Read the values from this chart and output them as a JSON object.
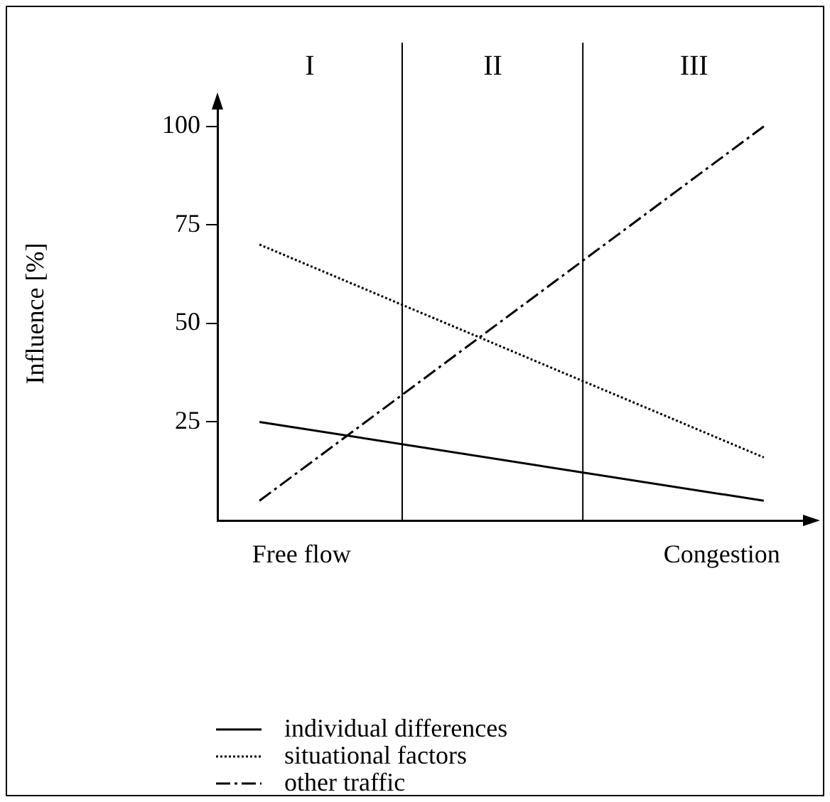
{
  "chart_data": {
    "type": "line",
    "ylabel": "Influence [%]",
    "categories": [
      null,
      null,
      "Free flow",
      null,
      null,
      null,
      null,
      null,
      null,
      null,
      null,
      null,
      "Congestion",
      null,
      null
    ],
    "ylim": [
      0,
      105
    ],
    "yticks": [
      25,
      50,
      75,
      100
    ],
    "legend": "bottom",
    "marker": "none",
    "series": [
      {
        "name": "individual differences",
        "color": "#000000",
        "line_style": "solid",
        "values": [
          null,
          25,
          null,
          null,
          null,
          null,
          null,
          null,
          null,
          null,
          null,
          null,
          null,
          5,
          null
        ]
      },
      {
        "name": "situational factors",
        "color": "#000000",
        "line_style": "dotted",
        "values": [
          null,
          70,
          null,
          null,
          null,
          null,
          null,
          null,
          null,
          null,
          null,
          null,
          null,
          16,
          null
        ]
      },
      {
        "name": "other traffic",
        "color": "#000000",
        "line_style": "dashdot",
        "values": [
          null,
          5,
          null,
          null,
          null,
          null,
          null,
          null,
          null,
          null,
          null,
          null,
          null,
          100,
          null
        ]
      }
    ],
    "annotations": [
      "I",
      "II",
      "III"
    ]
  }
}
